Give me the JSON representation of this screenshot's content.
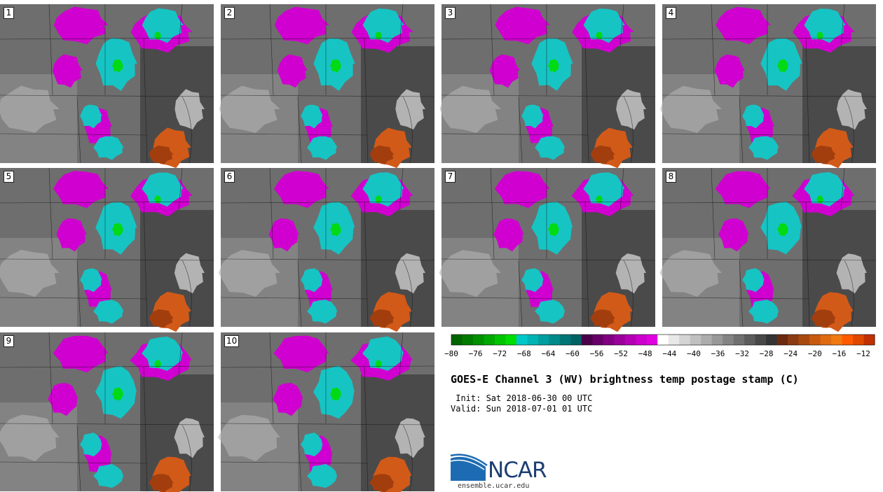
{
  "figure": {
    "title": "GOES-E Channel 3 (WV) brightness temp postage stamp (C)",
    "init_line": " Init: Sat 2018-06-30 00 UTC",
    "valid_line": "Valid: Sun 2018-07-01 01 UTC"
  },
  "panels": [
    {
      "label": "1"
    },
    {
      "label": "2"
    },
    {
      "label": "3"
    },
    {
      "label": "4"
    },
    {
      "label": "5"
    },
    {
      "label": "6"
    },
    {
      "label": "7"
    },
    {
      "label": "8"
    },
    {
      "label": "9"
    },
    {
      "label": "10"
    }
  ],
  "colorbar": {
    "units": "C",
    "min": -80,
    "max": -10,
    "tick_labels": [
      "−80",
      "−76",
      "−72",
      "−68",
      "−64",
      "−60",
      "−56",
      "−52",
      "−48",
      "−44",
      "−40",
      "−36",
      "−32",
      "−28",
      "−24",
      "−20",
      "−16",
      "−12"
    ],
    "colors": [
      "#006400",
      "#007a00",
      "#009000",
      "#00a800",
      "#00c400",
      "#00dd00",
      "#00c8c8",
      "#00b4b4",
      "#009e9e",
      "#008a8a",
      "#007575",
      "#006262",
      "#4a004a",
      "#660066",
      "#800080",
      "#9a009a",
      "#b400b4",
      "#cc00cc",
      "#e000e0",
      "#ffffff",
      "#e8e8e8",
      "#d4d4d4",
      "#c0c0c0",
      "#acacac",
      "#989898",
      "#848484",
      "#707070",
      "#5c5c5c",
      "#484848",
      "#343434",
      "#6b2a10",
      "#8b3a12",
      "#a84a10",
      "#c85a10",
      "#e06a10",
      "#f07a10",
      "#ff5a00",
      "#e04800",
      "#c03000"
    ]
  },
  "map_colors": {
    "background_gray": "#6e6e6e",
    "cold_cloud": "#16c4c4",
    "very_cold": "#00dd00",
    "moist": "#d000d0",
    "dry": "#d25a18"
  },
  "logo": {
    "text": "NCAR",
    "url": "ensemble.ucar.edu",
    "color": "#1d3f72"
  }
}
